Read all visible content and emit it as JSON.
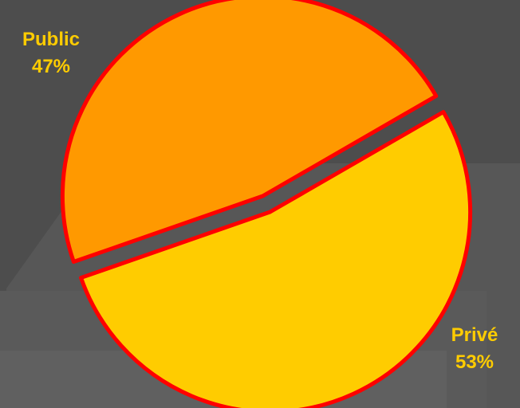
{
  "colors": {
    "background": "#4d4d4d",
    "background_shape": "#5c5c5c",
    "slice_public": "#ff9900",
    "slice_prive": "#ffcc00",
    "slice_border": "#ff0000",
    "label_text": "#ffcc00"
  },
  "chart_data": {
    "type": "pie",
    "title": "",
    "legend": "none",
    "slices": [
      {
        "label": "Public",
        "value": 47,
        "percent_label": "47%"
      },
      {
        "label": "Privé",
        "value": 53,
        "percent_label": "53%"
      }
    ]
  }
}
